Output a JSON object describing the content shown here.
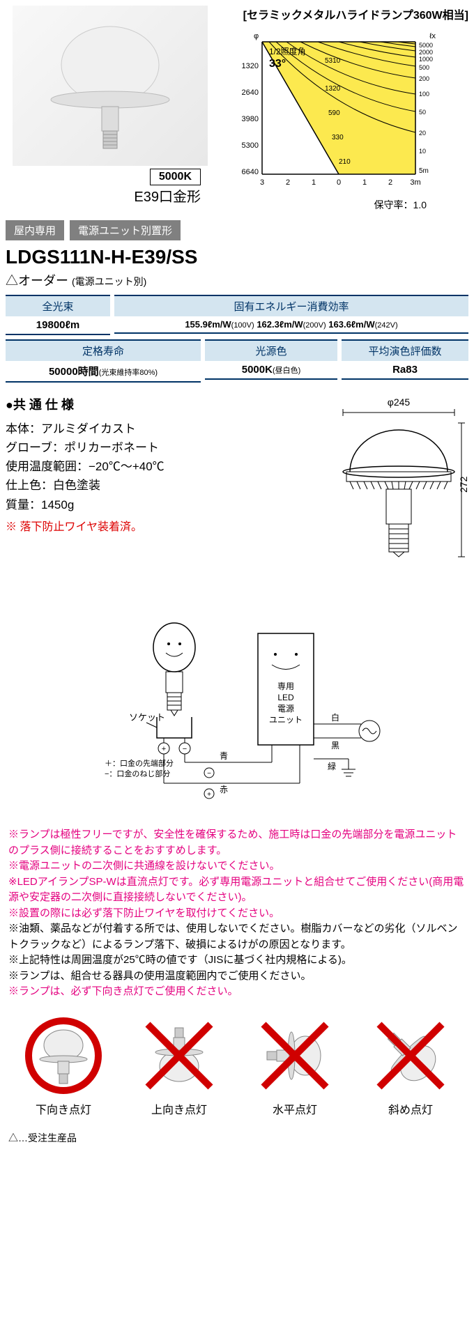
{
  "header": {
    "chart_title": "[セラミックメタルハライドランプ360W相当]",
    "kelvin": "5000K",
    "socket": "E39口金形",
    "maintain_rate": "保守率：1.0"
  },
  "chart": {
    "half_angle_label": "1/2照度角",
    "half_angle_value": "33°",
    "y_ticks": [
      "1320",
      "2640",
      "3980",
      "5300",
      "6640"
    ],
    "x_ticks_left": [
      "3",
      "2",
      "1",
      "0"
    ],
    "x_ticks_right": [
      "1",
      "2",
      "3m"
    ],
    "x_right_unit": "5m",
    "lux_labels": [
      "5000",
      "2000",
      "1000",
      "500",
      "200",
      "100",
      "50",
      "20",
      "10"
    ],
    "inner_labels": [
      "5310",
      "1320",
      "590",
      "330",
      "210"
    ],
    "lux_unit": "ℓx",
    "phi": "φ",
    "fill_color": "#fce94f",
    "line_color": "#000000"
  },
  "tags": {
    "indoor": "屋内専用",
    "psu": "電源ユニット別置形"
  },
  "model": "LDGS111N-H-E39/SS",
  "order": {
    "prefix": "△オーダー",
    "suffix": "(電源ユニット別)"
  },
  "specs": {
    "luminous_flux": {
      "label": "全光束",
      "value": "19800ℓm"
    },
    "efficacy": {
      "label": "固有エネルギー消費効率",
      "v1": "155.9ℓm/W",
      "v1s": "(100V)",
      "v2": "162.3ℓm/W",
      "v2s": "(200V)",
      "v3": "163.6ℓm/W",
      "v3s": "(242V)"
    },
    "lifetime": {
      "label": "定格寿命",
      "value": "50000時間",
      "suffix": "(光束維持率80%)"
    },
    "color_temp": {
      "label": "光源色",
      "value": "5000K",
      "suffix": "(昼白色)"
    },
    "cri": {
      "label": "平均演色評価数",
      "value": "Ra83"
    }
  },
  "common": {
    "title": "●共 通 仕 様",
    "body_material": "本体：アルミダイカスト",
    "globe": "グローブ：ポリカーボネート",
    "temp_range": "使用温度範囲：−20℃〜+40℃",
    "finish": "仕上色：白色塗装",
    "mass": "質量：1450g",
    "fall_wire": "※ 落下防止ワイヤ装着済。",
    "dim_diameter": "φ245",
    "dim_height": "272"
  },
  "wiring": {
    "socket_label": "ソケット",
    "plus_note": "＋：口金の先端部分",
    "minus_note": "−：口金のねじ部分",
    "psu_label": "専用\nLED\n電源\nユニット",
    "wire_blue": "青",
    "wire_red": "赤",
    "wire_white": "白",
    "wire_black": "黒",
    "wire_green": "緑"
  },
  "warnings": [
    {
      "color": "red",
      "text": "※ランプは極性フリーですが、安全性を確保するため、施工時は口金の先端部分を電源ユニットのプラス側に接続することをおすすめします。"
    },
    {
      "color": "red",
      "text": "※電源ユニットの二次側に共通線を設けないでください。"
    },
    {
      "color": "red",
      "text": "※LEDアイランプSP-Wは直流点灯です。必ず専用電源ユニットと組合せてご使用ください(商用電源や安定器の二次側に直接接続しないでください)。"
    },
    {
      "color": "red",
      "text": "※設置の際には必ず落下防止ワイヤを取付けてください。"
    },
    {
      "color": "black",
      "text": "※油類、薬品などが付着する所では、使用しないでください。樹脂カバーなどの劣化（ソルベントクラックなど）によるランプ落下、破損によるけがの原因となります。"
    },
    {
      "color": "black",
      "text": "※上記特性は周囲温度が25℃時の値です（JISに基づく社内規格による)。"
    },
    {
      "color": "black",
      "text": "※ランプは、組合せる器具の使用温度範囲内でご使用ください。"
    },
    {
      "color": "red",
      "text": "※ランプは、必ず下向き点灯でご使用ください。"
    }
  ],
  "orientations": [
    {
      "label": "下向き点灯",
      "ok": true,
      "rotate": 0
    },
    {
      "label": "上向き点灯",
      "ok": false,
      "rotate": 180
    },
    {
      "label": "水平点灯",
      "ok": false,
      "rotate": 90
    },
    {
      "label": "斜め点灯",
      "ok": false,
      "rotate": 135
    }
  ],
  "footer": "△…受注生産品",
  "colors": {
    "spec_head_bg": "#d4e5f0",
    "spec_border": "#003366",
    "ok_circle": "#d00000",
    "ng_cross": "#d00000",
    "warn_red": "#e4007f"
  }
}
